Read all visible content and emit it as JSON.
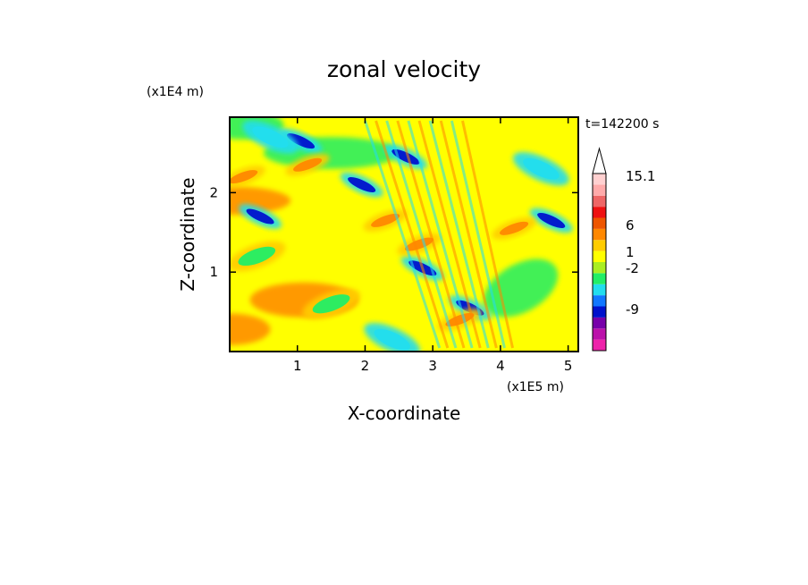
{
  "chart_data": {
    "type": "heatmap",
    "title": "zonal velocity",
    "time_label": "t=142200 s",
    "xlabel": "X-coordinate",
    "ylabel": "Z-coordinate",
    "x_unit": "(x1E5 m)",
    "y_unit": "(x1E4 m)",
    "xlim": [
      0,
      5.15
    ],
    "ylim": [
      0,
      2.95
    ],
    "x_ticks": [
      1,
      2,
      3,
      4,
      5
    ],
    "y_ticks": [
      1,
      2
    ],
    "colorbar": {
      "labels": [
        "15.1",
        "6",
        "1",
        "-2",
        "-9"
      ],
      "levels": [
        {
          "color": "#ee22aa"
        },
        {
          "color": "#bb11aa"
        },
        {
          "color": "#7700aa"
        },
        {
          "color": "#0011cc"
        },
        {
          "color": "#1177ff"
        },
        {
          "color": "#22ddee"
        },
        {
          "color": "#22ee66"
        },
        {
          "color": "#aaee22"
        },
        {
          "color": "#ffff00"
        },
        {
          "color": "#ffcc00"
        },
        {
          "color": "#ff8800"
        },
        {
          "color": "#ee5500"
        },
        {
          "color": "#ee1111"
        },
        {
          "color": "#ee6666"
        },
        {
          "color": "#ffaaaa"
        },
        {
          "color": "#ffd0d0"
        }
      ]
    },
    "field_features": [
      {
        "x": 1.05,
        "z": 2.65,
        "value": -9
      },
      {
        "x": 0.45,
        "z": 1.7,
        "value": -9
      },
      {
        "x": 1.95,
        "z": 2.1,
        "value": -9
      },
      {
        "x": 2.85,
        "z": 1.05,
        "value": -9
      },
      {
        "x": 4.75,
        "z": 1.65,
        "value": -9
      },
      {
        "x": 2.6,
        "z": 2.45,
        "value": -9
      },
      {
        "x": 3.55,
        "z": 0.55,
        "value": -9
      },
      {
        "x": 1.15,
        "z": 2.35,
        "value": 6
      },
      {
        "x": 0.2,
        "z": 2.2,
        "value": 6
      },
      {
        "x": 2.3,
        "z": 1.65,
        "value": 6
      },
      {
        "x": 2.8,
        "z": 1.35,
        "value": 6
      },
      {
        "x": 4.2,
        "z": 1.55,
        "value": 6
      },
      {
        "x": 3.4,
        "z": 0.4,
        "value": 6
      },
      {
        "x": 0.4,
        "z": 1.2,
        "value": 1
      },
      {
        "x": 1.5,
        "z": 0.6,
        "value": 1
      },
      {
        "x": 0.6,
        "z": 2.7,
        "value": -2
      },
      {
        "x": 4.6,
        "z": 2.3,
        "value": -2
      },
      {
        "x": 2.4,
        "z": 0.15,
        "value": -2
      }
    ]
  }
}
